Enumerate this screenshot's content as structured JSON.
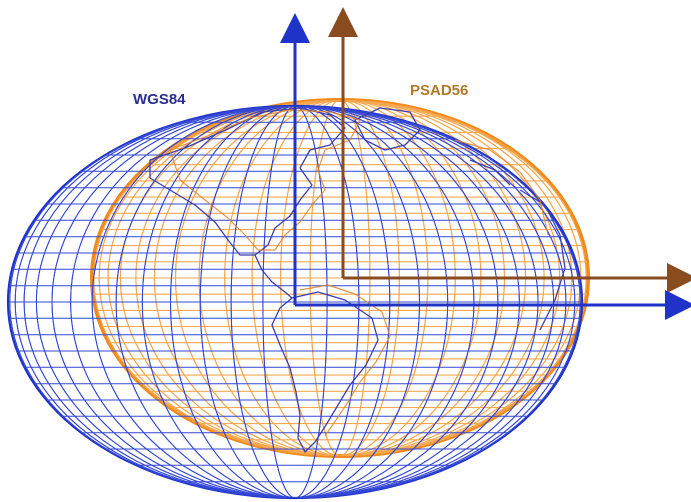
{
  "labels": {
    "wgs84": "WGS84",
    "psad56": "PSAD56"
  },
  "colors": {
    "wgs84": "#1f33c9",
    "wgs84_label": "#2a2f8f",
    "psad56": "#f08a1c",
    "psad56_axis": "#8a4b1f",
    "psad56_label": "#b07a2a",
    "background": "#ffffff"
  },
  "icons": {
    "land": "continent-outline"
  }
}
